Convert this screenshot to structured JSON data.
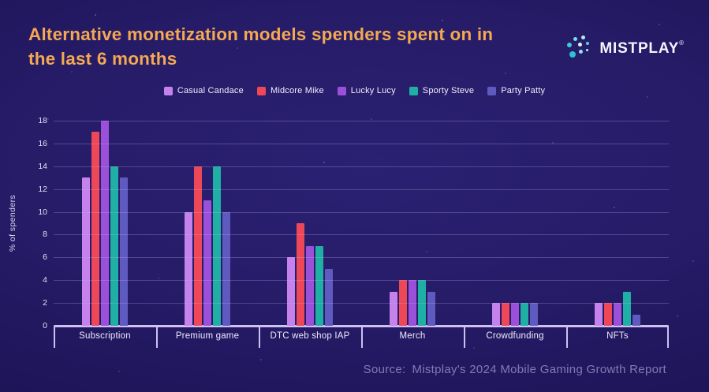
{
  "header": {
    "title": "Alternative monetization models spenders spent on in the last 6 months",
    "title_lines": [
      "Alternative monetization models spenders spent on in",
      "the last 6 months"
    ],
    "brand": {
      "name": "MISTPLAY",
      "registered": "®",
      "icon": "mistplay-dots-logo"
    }
  },
  "chart_data": {
    "type": "bar",
    "title": "Alternative monetization models spenders spent on in the last 6 months",
    "xlabel": "",
    "ylabel": "% of spenders",
    "ylim": [
      0,
      18
    ],
    "ytick_step": 2,
    "grid": true,
    "legend_position": "top",
    "categories": [
      "Subscription",
      "Premium game",
      "DTC web shop IAP",
      "Merch",
      "Crowdfunding",
      "NFTs"
    ],
    "series": [
      {
        "name": "Casual Candace",
        "color": "#c582ec",
        "values": [
          13,
          10,
          6,
          3,
          2,
          2
        ]
      },
      {
        "name": "Midcore Mike",
        "color": "#ee4758",
        "values": [
          17,
          14,
          9,
          4,
          2,
          2
        ]
      },
      {
        "name": "Lucky Lucy",
        "color": "#9a50d8",
        "values": [
          18,
          11,
          7,
          4,
          2,
          2
        ]
      },
      {
        "name": "Sporty Steve",
        "color": "#1fafa5",
        "values": [
          14,
          14,
          7,
          4,
          2,
          3
        ]
      },
      {
        "name": "Party Patty",
        "color": "#5f5abf",
        "values": [
          13,
          10,
          5,
          3,
          2,
          1
        ]
      }
    ]
  },
  "source": {
    "label": "Source:",
    "text": "Mistplay's 2024 Mobile Gaming Growth Report"
  },
  "colors": {
    "background": "#251b66",
    "title_text": "#f4a851",
    "axis": "#cfc0f0",
    "gridline": "rgba(193,178,238,0.28)",
    "tick_label": "#e6dff7",
    "source_text": "#8379b2",
    "brand_accent": "#3fc9de"
  }
}
